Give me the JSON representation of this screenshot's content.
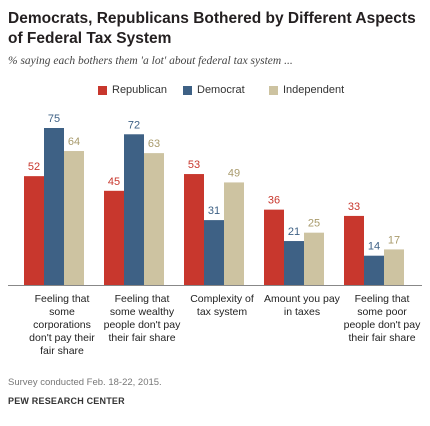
{
  "header": {
    "title": "Democrats, Republicans Bothered by Different Aspects of Federal Tax System",
    "subtitle": "% saying each bothers them 'a lot' about federal tax system ..."
  },
  "footer": {
    "note": "Survey conducted Feb. 18-22, 2015.",
    "source": "PEW RESEARCH CENTER"
  },
  "colors": {
    "republican": "#c8372d",
    "democrat": "#3e6185",
    "independent": "#cdc3a1"
  },
  "chart_data": {
    "type": "bar",
    "title": "Democrats, Republicans Bothered by Different Aspects of Federal Tax System",
    "subtitle": "% saying each bothers them 'a lot' about federal tax system ...",
    "xlabel": "",
    "ylabel": "",
    "ylim": [
      0,
      75
    ],
    "grid": false,
    "legend_position": "top",
    "categories": [
      "Feeling that some corporations don't pay their fair share",
      "Feeling that some wealthy people don't pay their fair share",
      "Complexity of tax system",
      "Amount you pay in taxes",
      "Feeling that some poor people don't pay their fair share"
    ],
    "series": [
      {
        "name": "Republican",
        "color": "#c8372d",
        "values": [
          52,
          45,
          53,
          36,
          33
        ]
      },
      {
        "name": "Democrat",
        "color": "#3e6185",
        "values": [
          75,
          72,
          31,
          21,
          14
        ]
      },
      {
        "name": "Independent",
        "color": "#cdc3a1",
        "values": [
          64,
          63,
          49,
          25,
          17
        ]
      }
    ]
  }
}
